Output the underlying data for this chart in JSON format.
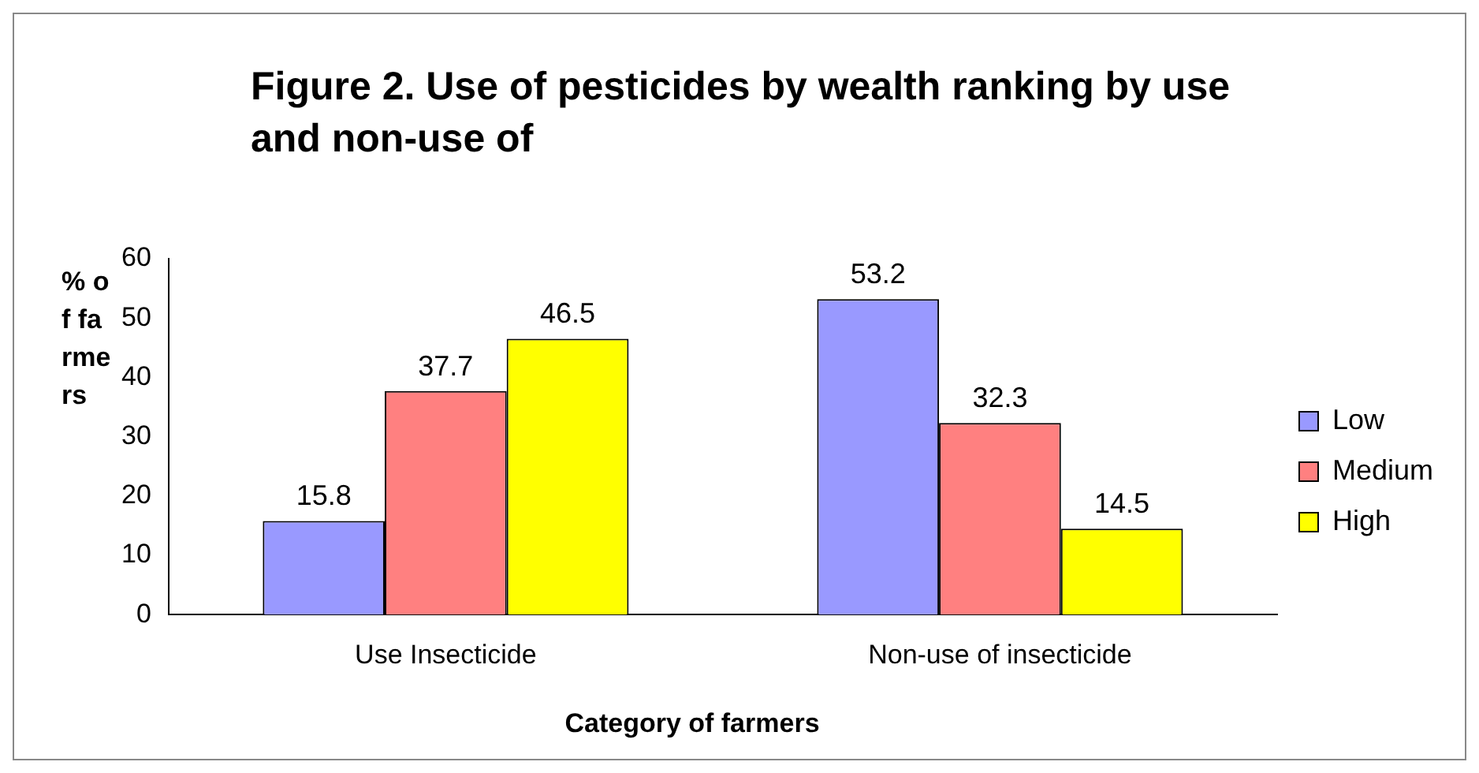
{
  "chart_data": {
    "type": "bar",
    "title": "Figure 2. Use of pesticides by wealth ranking by use and non-use of",
    "xlabel": "Category of farmers",
    "ylabel": "% of farmers",
    "categories": [
      "Use Insecticide",
      "Non-use of insecticide"
    ],
    "series": [
      {
        "name": "Low",
        "color": "#9999ff",
        "values": [
          15.8,
          53.2
        ]
      },
      {
        "name": "Medium",
        "color": "#ff8080",
        "values": [
          37.7,
          32.3
        ]
      },
      {
        "name": "High",
        "color": "#ffff00",
        "values": [
          46.5,
          14.5
        ]
      }
    ],
    "ylim": [
      0,
      60
    ],
    "yticks": [
      0,
      10,
      20,
      30,
      40,
      50,
      60
    ],
    "grid": false,
    "legend": "right",
    "data_labels": true
  }
}
